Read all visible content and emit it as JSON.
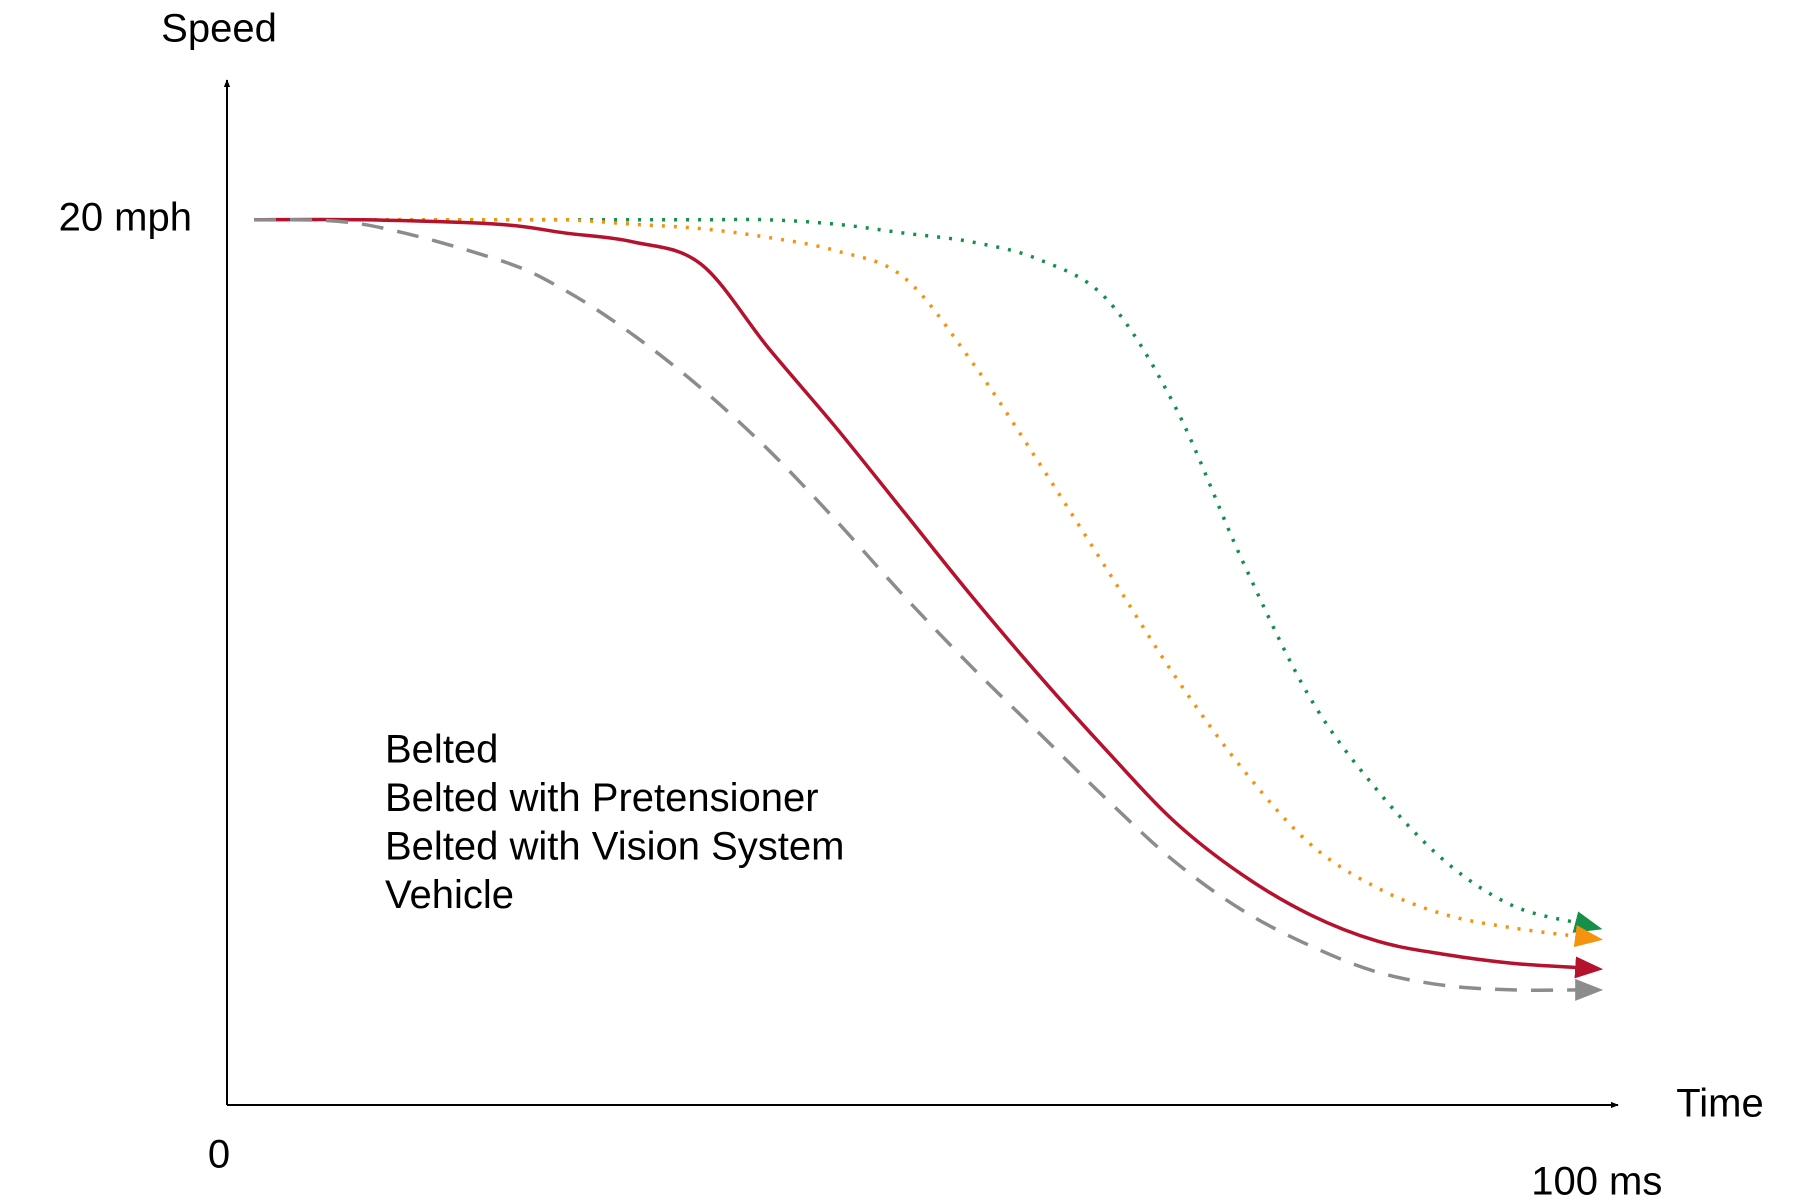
{
  "chart_data": {
    "type": "line",
    "y_label": "Speed",
    "x_label": "Time",
    "xlim": [
      0,
      102.6
    ],
    "ylim": [
      0,
      23
    ],
    "xticks": [
      0,
      {
        "value": 100,
        "label": "100 ms"
      }
    ],
    "yticks": [
      {
        "value": 20,
        "label": "20 mph"
      }
    ],
    "grid": false,
    "x": [
      2,
      10,
      20,
      25,
      30,
      35,
      40,
      45,
      50,
      55,
      60,
      65,
      70,
      75,
      80,
      85,
      90,
      95,
      100
    ],
    "series": [
      {
        "name": "Belted",
        "color": "#14904a",
        "dash": "dotted",
        "values": [
          20,
          20,
          20,
          20,
          20,
          20,
          20,
          19.9,
          19.7,
          19.5,
          19.1,
          18.2,
          15.8,
          12.3,
          9.2,
          7.1,
          5.5,
          4.5,
          4.1
        ]
      },
      {
        "name": "Belted with Pretensioner",
        "color": "#f5930f",
        "dash": "dotted",
        "values": [
          20,
          20,
          20,
          20,
          19.9,
          19.8,
          19.6,
          19.3,
          18.7,
          16.8,
          14.5,
          12.1,
          9.7,
          7.6,
          5.9,
          4.9,
          4.3,
          4.0,
          3.8
        ]
      },
      {
        "name": "Belted with Vision System",
        "color": "#b5122d",
        "dash": "solid",
        "values": [
          20,
          20,
          19.9,
          19.7,
          19.5,
          19.0,
          17.1,
          15.3,
          13.4,
          11.5,
          9.7,
          8.0,
          6.4,
          5.2,
          4.3,
          3.7,
          3.4,
          3.2,
          3.1
        ]
      },
      {
        "name": "Vehicle",
        "color": "#8c8c8c",
        "dash": "dashed",
        "values": [
          20,
          19.9,
          19.1,
          18.4,
          17.4,
          16.2,
          14.8,
          13.2,
          11.5,
          9.9,
          8.4,
          6.9,
          5.5,
          4.4,
          3.6,
          3.0,
          2.7,
          2.6,
          2.6
        ]
      }
    ]
  }
}
